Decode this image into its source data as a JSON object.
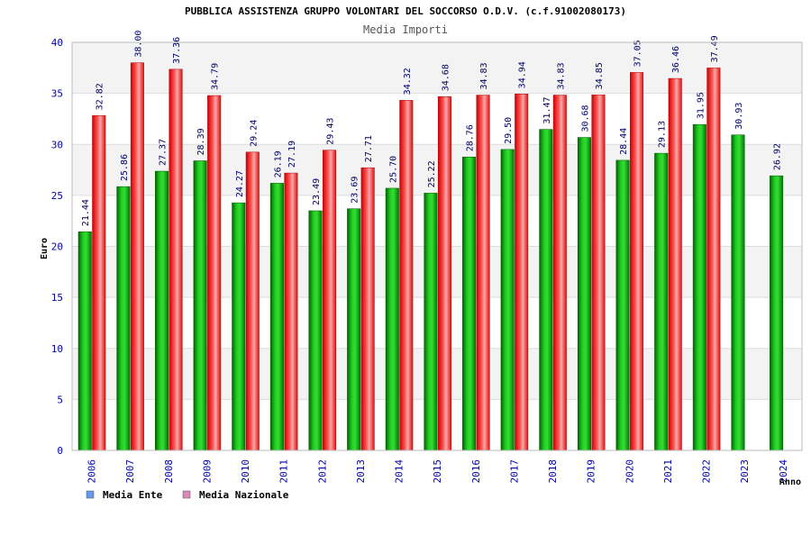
{
  "chart_data": {
    "type": "bar",
    "title": "PUBBLICA ASSISTENZA GRUPPO VOLONTARI DEL SOCCORSO O.D.V. (c.f.91002080173)",
    "subtitle": "Media Importi",
    "xlabel": "Anno",
    "ylabel": "Euro",
    "ylim": [
      0,
      40
    ],
    "yticks": [
      "0",
      "5",
      "10",
      "15",
      "20",
      "25",
      "30",
      "35",
      "40"
    ],
    "grid": "horizontal bands",
    "legend_position": "bottom-left",
    "categories": [
      "2006",
      "2007",
      "2008",
      "2009",
      "2010",
      "2011",
      "2012",
      "2013",
      "2014",
      "2015",
      "2016",
      "2017",
      "2018",
      "2019",
      "2020",
      "2021",
      "2022",
      "2023",
      "2024"
    ],
    "series": [
      {
        "name": "Media Ente",
        "color": "#00aa00",
        "legend_color": "#6699ee",
        "values": [
          21.44,
          25.86,
          27.37,
          28.39,
          24.27,
          26.19,
          23.49,
          23.69,
          25.7,
          25.22,
          28.76,
          29.5,
          31.47,
          30.68,
          28.44,
          29.13,
          31.95,
          30.93,
          26.92
        ],
        "labels": [
          "21.44",
          "25.86",
          "27.37",
          "28.39",
          "24.27",
          "26.19",
          "23.49",
          "23.69",
          "25.70",
          "25.22",
          "28.76",
          "29.50",
          "31.47",
          "30.68",
          "28.44",
          "29.13",
          "31.95",
          "30.93",
          "26.92"
        ]
      },
      {
        "name": "Media Nazionale",
        "color": "#dd0000",
        "legend_color": "#dd88bb",
        "values": [
          32.82,
          38.0,
          37.36,
          34.79,
          29.24,
          27.19,
          29.43,
          27.71,
          34.32,
          34.68,
          34.83,
          34.94,
          34.83,
          34.85,
          37.05,
          36.46,
          37.49,
          null,
          null
        ],
        "labels": [
          "32.82",
          "38.00",
          "37.36",
          "34.79",
          "29.24",
          "27.19",
          "29.43",
          "27.71",
          "34.32",
          "34.68",
          "34.83",
          "34.94",
          "34.83",
          "34.85",
          "37.05",
          "36.46",
          "37.49",
          "",
          ""
        ]
      }
    ]
  }
}
